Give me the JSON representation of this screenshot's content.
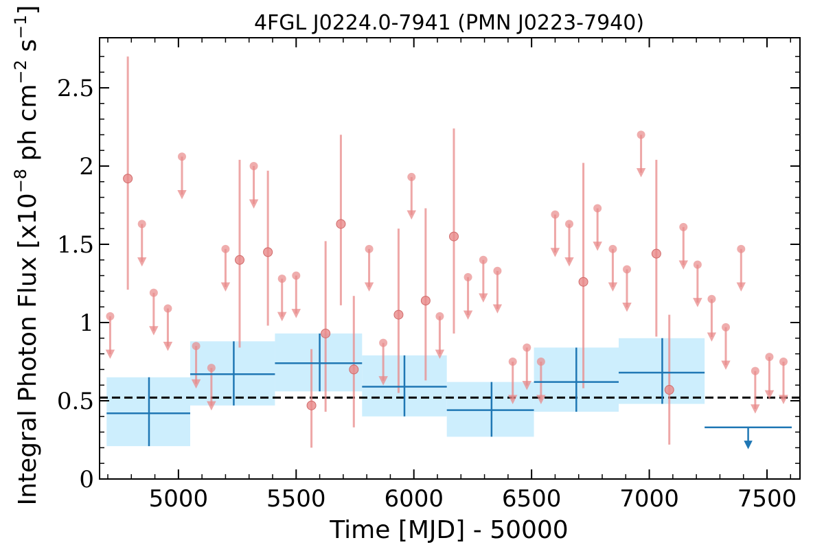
{
  "chart_data": {
    "type": "scatter",
    "title": "4FGL J0224.0-7941 (PMN J0223-7940)",
    "xlabel": "Time [MJD] - 50000",
    "ylabel_main": "Integral Photon Flux [x10",
    "ylabel_exp1": "−8",
    "ylabel_mid": " ph cm",
    "ylabel_exp2": "−2",
    "ylabel_s": " s",
    "ylabel_exp3": "−1",
    "ylabel_end": "]",
    "xlim": [
      4665,
      7640
    ],
    "ylim": [
      0,
      2.82
    ],
    "xticks": [
      5000,
      5500,
      6000,
      6500,
      7000,
      7500
    ],
    "xtick_labels": [
      "5000",
      "5500",
      "6000",
      "6500",
      "7000",
      "7500"
    ],
    "yticks": [
      0,
      0.5,
      1,
      1.5,
      2,
      2.5
    ],
    "ytick_labels": [
      "0",
      "0.5",
      "1",
      "1.5",
      "2",
      "2.5"
    ],
    "average_flux": 0.52,
    "colors": {
      "short_bins": "#e88a8a",
      "long_bins": "#1f77b4",
      "band_fill": "#cdeefd",
      "average_line": "#000000"
    },
    "short_detections": [
      {
        "x": 4785,
        "y": 1.92,
        "lo": 1.21,
        "hi": 2.7
      },
      {
        "x": 5260,
        "y": 1.4,
        "lo": 0.84,
        "hi": 2.04
      },
      {
        "x": 5380,
        "y": 1.45,
        "lo": 0.98,
        "hi": 1.97
      },
      {
        "x": 5565,
        "y": 0.47,
        "lo": 0.2,
        "hi": 0.83
      },
      {
        "x": 5625,
        "y": 0.93,
        "lo": 0.43,
        "hi": 1.52
      },
      {
        "x": 5690,
        "y": 1.63,
        "lo": 1.11,
        "hi": 2.2
      },
      {
        "x": 5745,
        "y": 0.7,
        "lo": 0.33,
        "hi": 1.17
      },
      {
        "x": 5935,
        "y": 1.05,
        "lo": 0.55,
        "hi": 1.6
      },
      {
        "x": 6050,
        "y": 1.14,
        "lo": 0.63,
        "hi": 1.73
      },
      {
        "x": 6170,
        "y": 1.55,
        "lo": 0.93,
        "hi": 2.24
      },
      {
        "x": 6720,
        "y": 1.26,
        "lo": 0.58,
        "hi": 2.02
      },
      {
        "x": 7030,
        "y": 1.44,
        "lo": 0.91,
        "hi": 2.04
      },
      {
        "x": 7085,
        "y": 0.57,
        "lo": 0.22,
        "hi": 1.05
      }
    ],
    "short_upper_limits": [
      {
        "x": 4710,
        "y": 1.04
      },
      {
        "x": 4845,
        "y": 1.63
      },
      {
        "x": 4895,
        "y": 1.19
      },
      {
        "x": 4955,
        "y": 1.09
      },
      {
        "x": 5015,
        "y": 2.06
      },
      {
        "x": 5075,
        "y": 0.85
      },
      {
        "x": 5140,
        "y": 0.71
      },
      {
        "x": 5200,
        "y": 1.47
      },
      {
        "x": 5320,
        "y": 2.0
      },
      {
        "x": 5440,
        "y": 1.28
      },
      {
        "x": 5500,
        "y": 1.3
      },
      {
        "x": 5810,
        "y": 1.47
      },
      {
        "x": 5870,
        "y": 0.87
      },
      {
        "x": 5990,
        "y": 1.93
      },
      {
        "x": 6110,
        "y": 1.04
      },
      {
        "x": 6230,
        "y": 1.29
      },
      {
        "x": 6295,
        "y": 1.4
      },
      {
        "x": 6355,
        "y": 1.33
      },
      {
        "x": 6420,
        "y": 0.75
      },
      {
        "x": 6480,
        "y": 0.84
      },
      {
        "x": 6540,
        "y": 0.75
      },
      {
        "x": 6600,
        "y": 1.69
      },
      {
        "x": 6660,
        "y": 1.63
      },
      {
        "x": 6780,
        "y": 1.73
      },
      {
        "x": 6845,
        "y": 1.47
      },
      {
        "x": 6905,
        "y": 1.34
      },
      {
        "x": 6965,
        "y": 2.2
      },
      {
        "x": 7145,
        "y": 1.61
      },
      {
        "x": 7205,
        "y": 1.37
      },
      {
        "x": 7265,
        "y": 1.15
      },
      {
        "x": 7325,
        "y": 0.97
      },
      {
        "x": 7390,
        "y": 1.47
      },
      {
        "x": 7450,
        "y": 0.69
      },
      {
        "x": 7510,
        "y": 0.78
      },
      {
        "x": 7570,
        "y": 0.75
      }
    ],
    "long_bins": [
      {
        "x0": 4695,
        "x1": 5050,
        "xc": 4875,
        "y": 0.42,
        "lo": 0.21,
        "hi": 0.65
      },
      {
        "x0": 5050,
        "x1": 5410,
        "xc": 5235,
        "y": 0.67,
        "lo": 0.47,
        "hi": 0.88
      },
      {
        "x0": 5410,
        "x1": 5780,
        "xc": 5600,
        "y": 0.74,
        "lo": 0.56,
        "hi": 0.93
      },
      {
        "x0": 5780,
        "x1": 6140,
        "xc": 5960,
        "y": 0.59,
        "lo": 0.4,
        "hi": 0.79
      },
      {
        "x0": 6140,
        "x1": 6510,
        "xc": 6330,
        "y": 0.44,
        "lo": 0.27,
        "hi": 0.62
      },
      {
        "x0": 6510,
        "x1": 6870,
        "xc": 6690,
        "y": 0.62,
        "lo": 0.43,
        "hi": 0.84
      },
      {
        "x0": 6870,
        "x1": 7235,
        "xc": 7055,
        "y": 0.68,
        "lo": 0.48,
        "hi": 0.9
      }
    ],
    "long_upper_limit": {
      "x0": 7235,
      "x1": 7605,
      "xc": 7420,
      "y": 0.33
    }
  }
}
